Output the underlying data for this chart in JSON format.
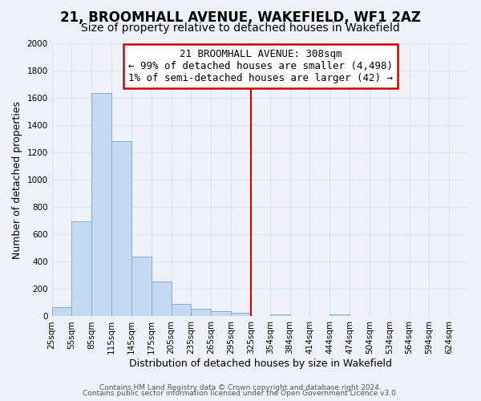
{
  "title": "21, BROOMHALL AVENUE, WAKEFIELD, WF1 2AZ",
  "subtitle": "Size of property relative to detached houses in Wakefield",
  "xlabel": "Distribution of detached houses by size in Wakefield",
  "ylabel": "Number of detached properties",
  "bar_color": "#c5d9f0",
  "bar_edge_color": "#7bafd4",
  "annotation_line1": "21 BROOMHALL AVENUE: 308sqm",
  "annotation_line2": "← 99% of detached houses are smaller (4,498)",
  "annotation_line3": "1% of semi-detached houses are larger (42) →",
  "vline_color": "#cc0000",
  "categories": [
    "25sqm",
    "55sqm",
    "85sqm",
    "115sqm",
    "145sqm",
    "175sqm",
    "205sqm",
    "235sqm",
    "265sqm",
    "295sqm",
    "325sqm",
    "354sqm",
    "384sqm",
    "414sqm",
    "444sqm",
    "474sqm",
    "504sqm",
    "534sqm",
    "564sqm",
    "594sqm",
    "624sqm"
  ],
  "bin_centers": [
    25,
    55,
    85,
    115,
    145,
    175,
    205,
    235,
    265,
    295,
    325,
    354,
    384,
    414,
    444,
    474,
    504,
    534,
    564,
    594,
    624
  ],
  "bin_width": 30,
  "values": [
    70,
    695,
    1635,
    1285,
    440,
    255,
    90,
    55,
    40,
    25,
    0,
    15,
    0,
    0,
    15,
    0,
    0,
    0,
    0,
    0,
    0
  ],
  "vline_x_idx": 10,
  "ylim": [
    0,
    2000
  ],
  "xlim_left": 10,
  "xlim_right": 639,
  "yticks": [
    0,
    200,
    400,
    600,
    800,
    1000,
    1200,
    1400,
    1600,
    1800,
    2000
  ],
  "footer_line1": "Contains HM Land Registry data © Crown copyright and database right 2024.",
  "footer_line2": "Contains public sector information licensed under the Open Government Licence v3.0.",
  "background_color": "#eef2f8",
  "grid_color": "#d8e4f0",
  "title_fontsize": 12,
  "subtitle_fontsize": 10,
  "axis_label_fontsize": 9,
  "tick_fontsize": 7.5,
  "footer_fontsize": 6.5,
  "annotation_fontsize": 9
}
